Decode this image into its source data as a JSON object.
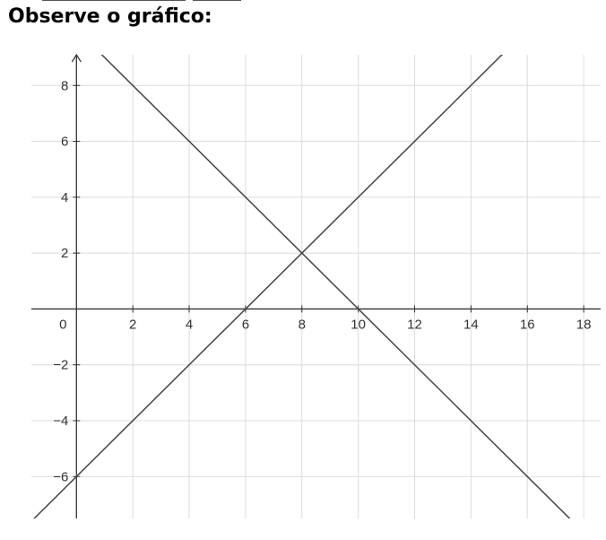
{
  "heading": "Observe o gráfico:",
  "chart_data": {
    "type": "line",
    "title": "",
    "xlabel": "",
    "ylabel": "",
    "xlim": [
      -1.6,
      18.6
    ],
    "ylim": [
      -7.5,
      9.1
    ],
    "grid": true,
    "x_ticks": [
      0,
      2,
      4,
      6,
      8,
      10,
      12,
      14,
      16,
      18
    ],
    "x_tick_labels": [
      "0",
      "2",
      "4",
      "6",
      "8",
      "10",
      "12",
      "14",
      "16",
      "18"
    ],
    "y_ticks": [
      -6,
      -4,
      -2,
      2,
      4,
      6,
      8
    ],
    "y_tick_labels": [
      "−6",
      "−4",
      "−2",
      "2",
      "4",
      "6",
      "8"
    ],
    "series": [
      {
        "x": [
          -1.6,
          16.6
        ],
        "y": [
          -7.6,
          10.6
        ],
        "color": "#444444"
      },
      {
        "x": [
          0.3,
          18.6
        ],
        "y": [
          9.7,
          -8.6
        ],
        "color": "#444444"
      }
    ]
  }
}
